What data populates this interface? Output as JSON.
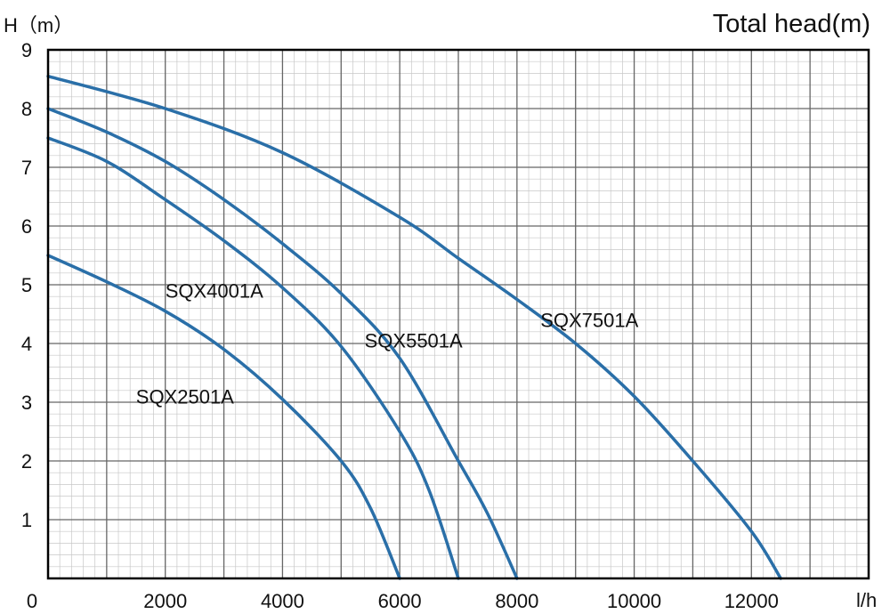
{
  "chart_data": {
    "type": "line",
    "title": "Total head(m)",
    "ylabel": "H（m）",
    "xlabel": "l/h",
    "xlim": [
      0,
      14000
    ],
    "ylim": [
      0,
      9
    ],
    "x_ticks": [
      "0",
      "2000",
      "4000",
      "6000",
      "8000",
      "10000",
      "12000"
    ],
    "y_ticks": [
      "1",
      "2",
      "3",
      "4",
      "5",
      "6",
      "7",
      "8",
      "9"
    ],
    "grid": true,
    "colors": {
      "line": "#2a6fa8",
      "major_grid": "#666666",
      "minor_grid": "#c8c8c8",
      "frame": "#000000"
    },
    "series": [
      {
        "name": "SQX2501A",
        "points": [
          [
            0,
            5.5
          ],
          [
            1000,
            5.05
          ],
          [
            2000,
            4.55
          ],
          [
            3000,
            3.9
          ],
          [
            4000,
            3.05
          ],
          [
            5000,
            2.0
          ],
          [
            5500,
            1.2
          ],
          [
            6000,
            0.0
          ]
        ]
      },
      {
        "name": "SQX4001A",
        "points": [
          [
            0,
            7.5
          ],
          [
            1000,
            7.1
          ],
          [
            2000,
            6.45
          ],
          [
            3000,
            5.75
          ],
          [
            4000,
            4.95
          ],
          [
            5000,
            3.95
          ],
          [
            6000,
            2.5
          ],
          [
            6500,
            1.5
          ],
          [
            7000,
            0.0
          ]
        ]
      },
      {
        "name": "SQX5501A",
        "points": [
          [
            0,
            8.0
          ],
          [
            1000,
            7.6
          ],
          [
            2000,
            7.1
          ],
          [
            3000,
            6.45
          ],
          [
            4000,
            5.7
          ],
          [
            5000,
            4.85
          ],
          [
            6000,
            3.75
          ],
          [
            7000,
            2.0
          ],
          [
            7500,
            1.1
          ],
          [
            8000,
            0.0
          ]
        ]
      },
      {
        "name": "SQX7501A",
        "points": [
          [
            0,
            8.55
          ],
          [
            2000,
            8.0
          ],
          [
            4000,
            7.25
          ],
          [
            6000,
            6.15
          ],
          [
            7000,
            5.45
          ],
          [
            8000,
            4.75
          ],
          [
            9000,
            4.0
          ],
          [
            10000,
            3.1
          ],
          [
            11000,
            2.0
          ],
          [
            12000,
            0.8
          ],
          [
            12500,
            0.0
          ]
        ]
      }
    ]
  }
}
